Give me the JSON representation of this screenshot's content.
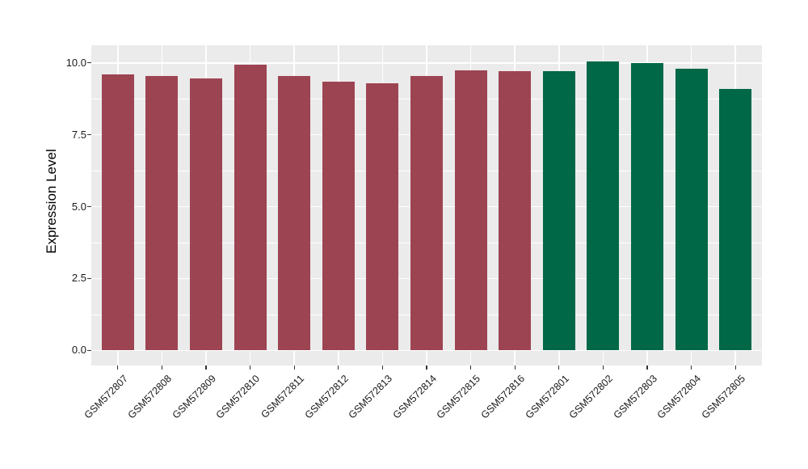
{
  "chart_data": {
    "type": "bar",
    "title": "",
    "xlabel": "",
    "ylabel": "Expression Level",
    "categories": [
      "GSM572807",
      "GSM572808",
      "GSM572809",
      "GSM572810",
      "GSM572811",
      "GSM572812",
      "GSM572813",
      "GSM572814",
      "GSM572815",
      "GSM572816",
      "GSM572801",
      "GSM572802",
      "GSM572803",
      "GSM572804",
      "GSM572805"
    ],
    "values": [
      9.6,
      9.55,
      9.45,
      9.95,
      9.55,
      9.35,
      9.3,
      9.55,
      9.75,
      9.7,
      9.7,
      10.05,
      10.0,
      9.8,
      9.1
    ],
    "groups": [
      0,
      0,
      0,
      0,
      0,
      0,
      0,
      0,
      0,
      0,
      1,
      1,
      1,
      1,
      1
    ],
    "group_colors": [
      "#9D4452",
      "#006747"
    ],
    "y_ticks": [
      {
        "label": "0.0",
        "value": 0
      },
      {
        "label": "2.5",
        "value": 2.5
      },
      {
        "label": "5.0",
        "value": 5
      },
      {
        "label": "7.5",
        "value": 7.5
      },
      {
        "label": "10.0",
        "value": 10
      }
    ],
    "y_minor_ticks": [
      1.25,
      3.75,
      6.25,
      8.75
    ],
    "ylim": [
      0,
      10.6
    ],
    "grid": true,
    "legend_position": "none",
    "panel_bg": "#EBEBEB",
    "grid_color": "#FFFFFF"
  }
}
